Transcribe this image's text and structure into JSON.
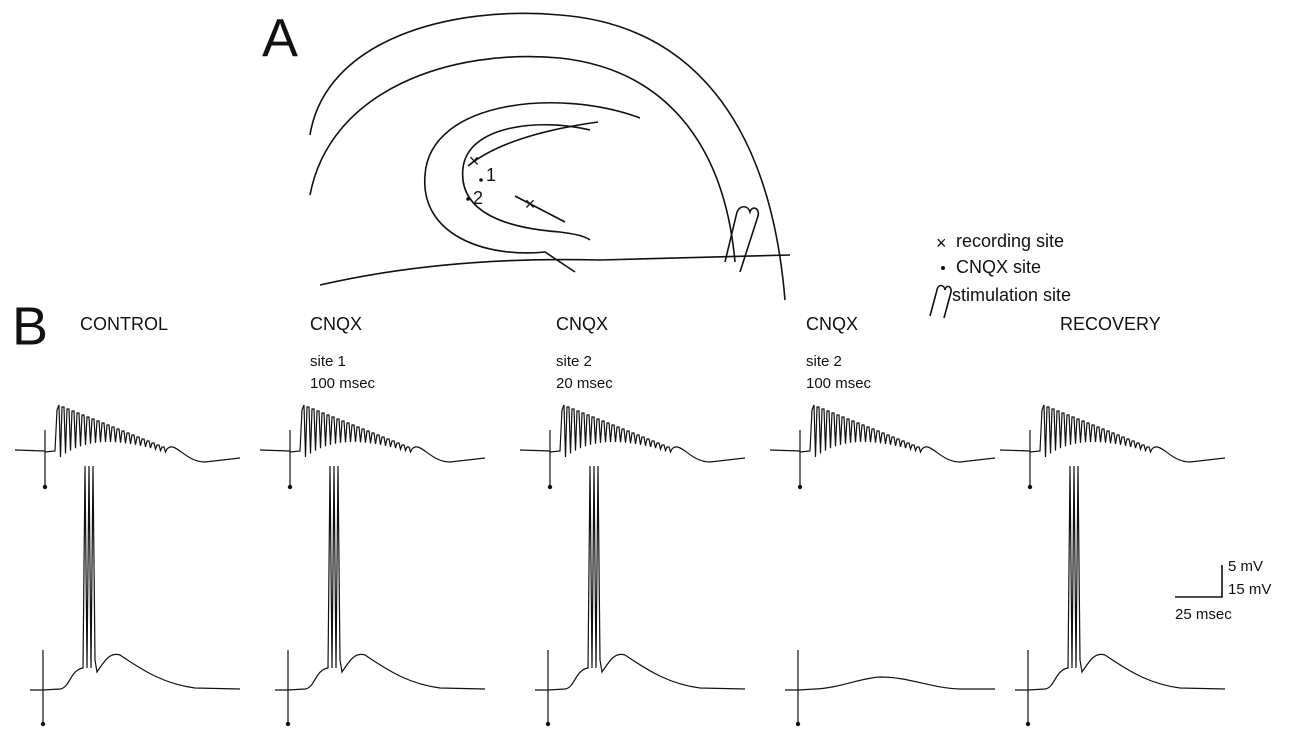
{
  "panel_a": {
    "label": "A",
    "site_labels": [
      "1",
      "2"
    ],
    "legend": [
      "recording site",
      "CNQX site",
      "stimulation site"
    ]
  },
  "panel_b": {
    "label": "B",
    "conditions": [
      {
        "title": "CONTROL"
      },
      {
        "title": "CNQX",
        "site": "site 1",
        "duration": "100 msec"
      },
      {
        "title": "CNQX",
        "site": "site 2",
        "duration": "20 msec"
      },
      {
        "title": "CNQX",
        "site": "site 2",
        "duration": "100 msec"
      },
      {
        "title": "RECOVERY"
      }
    ],
    "scale_bar": [
      "5 mV",
      "15 mV",
      "25 msec"
    ]
  }
}
